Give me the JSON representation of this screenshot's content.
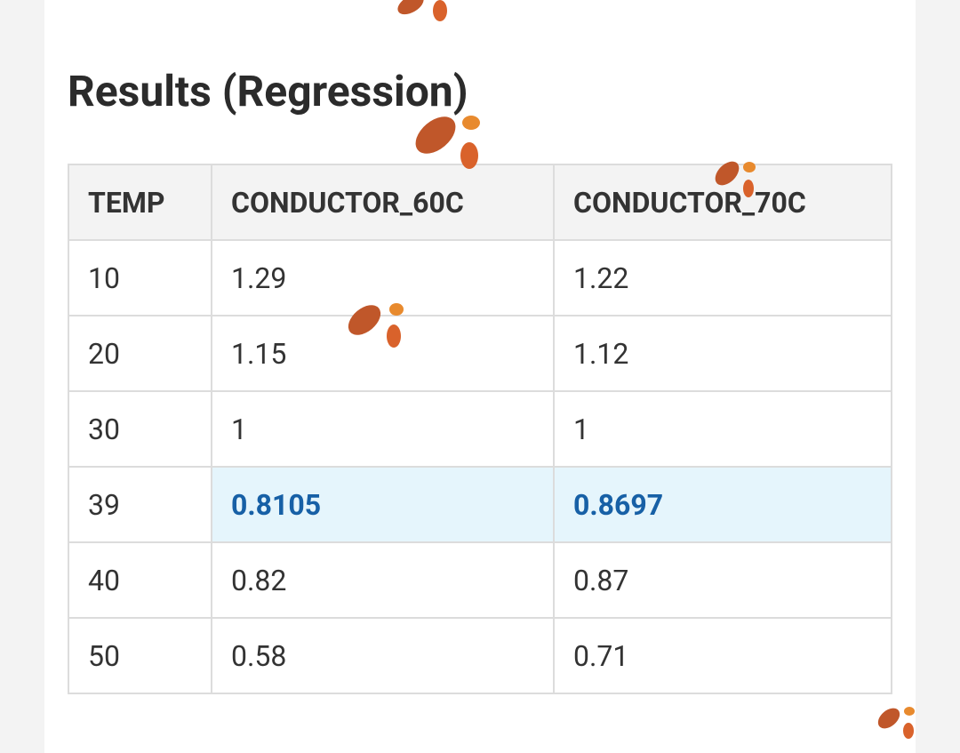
{
  "header": {
    "title": "Results (Regression)"
  },
  "table": {
    "columns": [
      "TEMP",
      "CONDUCTOR_60C",
      "CONDUCTOR_70C"
    ],
    "rows": [
      [
        "10",
        "1.29",
        "1.22"
      ],
      [
        "20",
        "1.15",
        "1.12"
      ],
      [
        "30",
        "1",
        "1"
      ],
      [
        "39",
        "0.8105",
        "0.8697"
      ],
      [
        "40",
        "0.82",
        "0.87"
      ],
      [
        "50",
        "0.58",
        "0.71"
      ]
    ]
  }
}
